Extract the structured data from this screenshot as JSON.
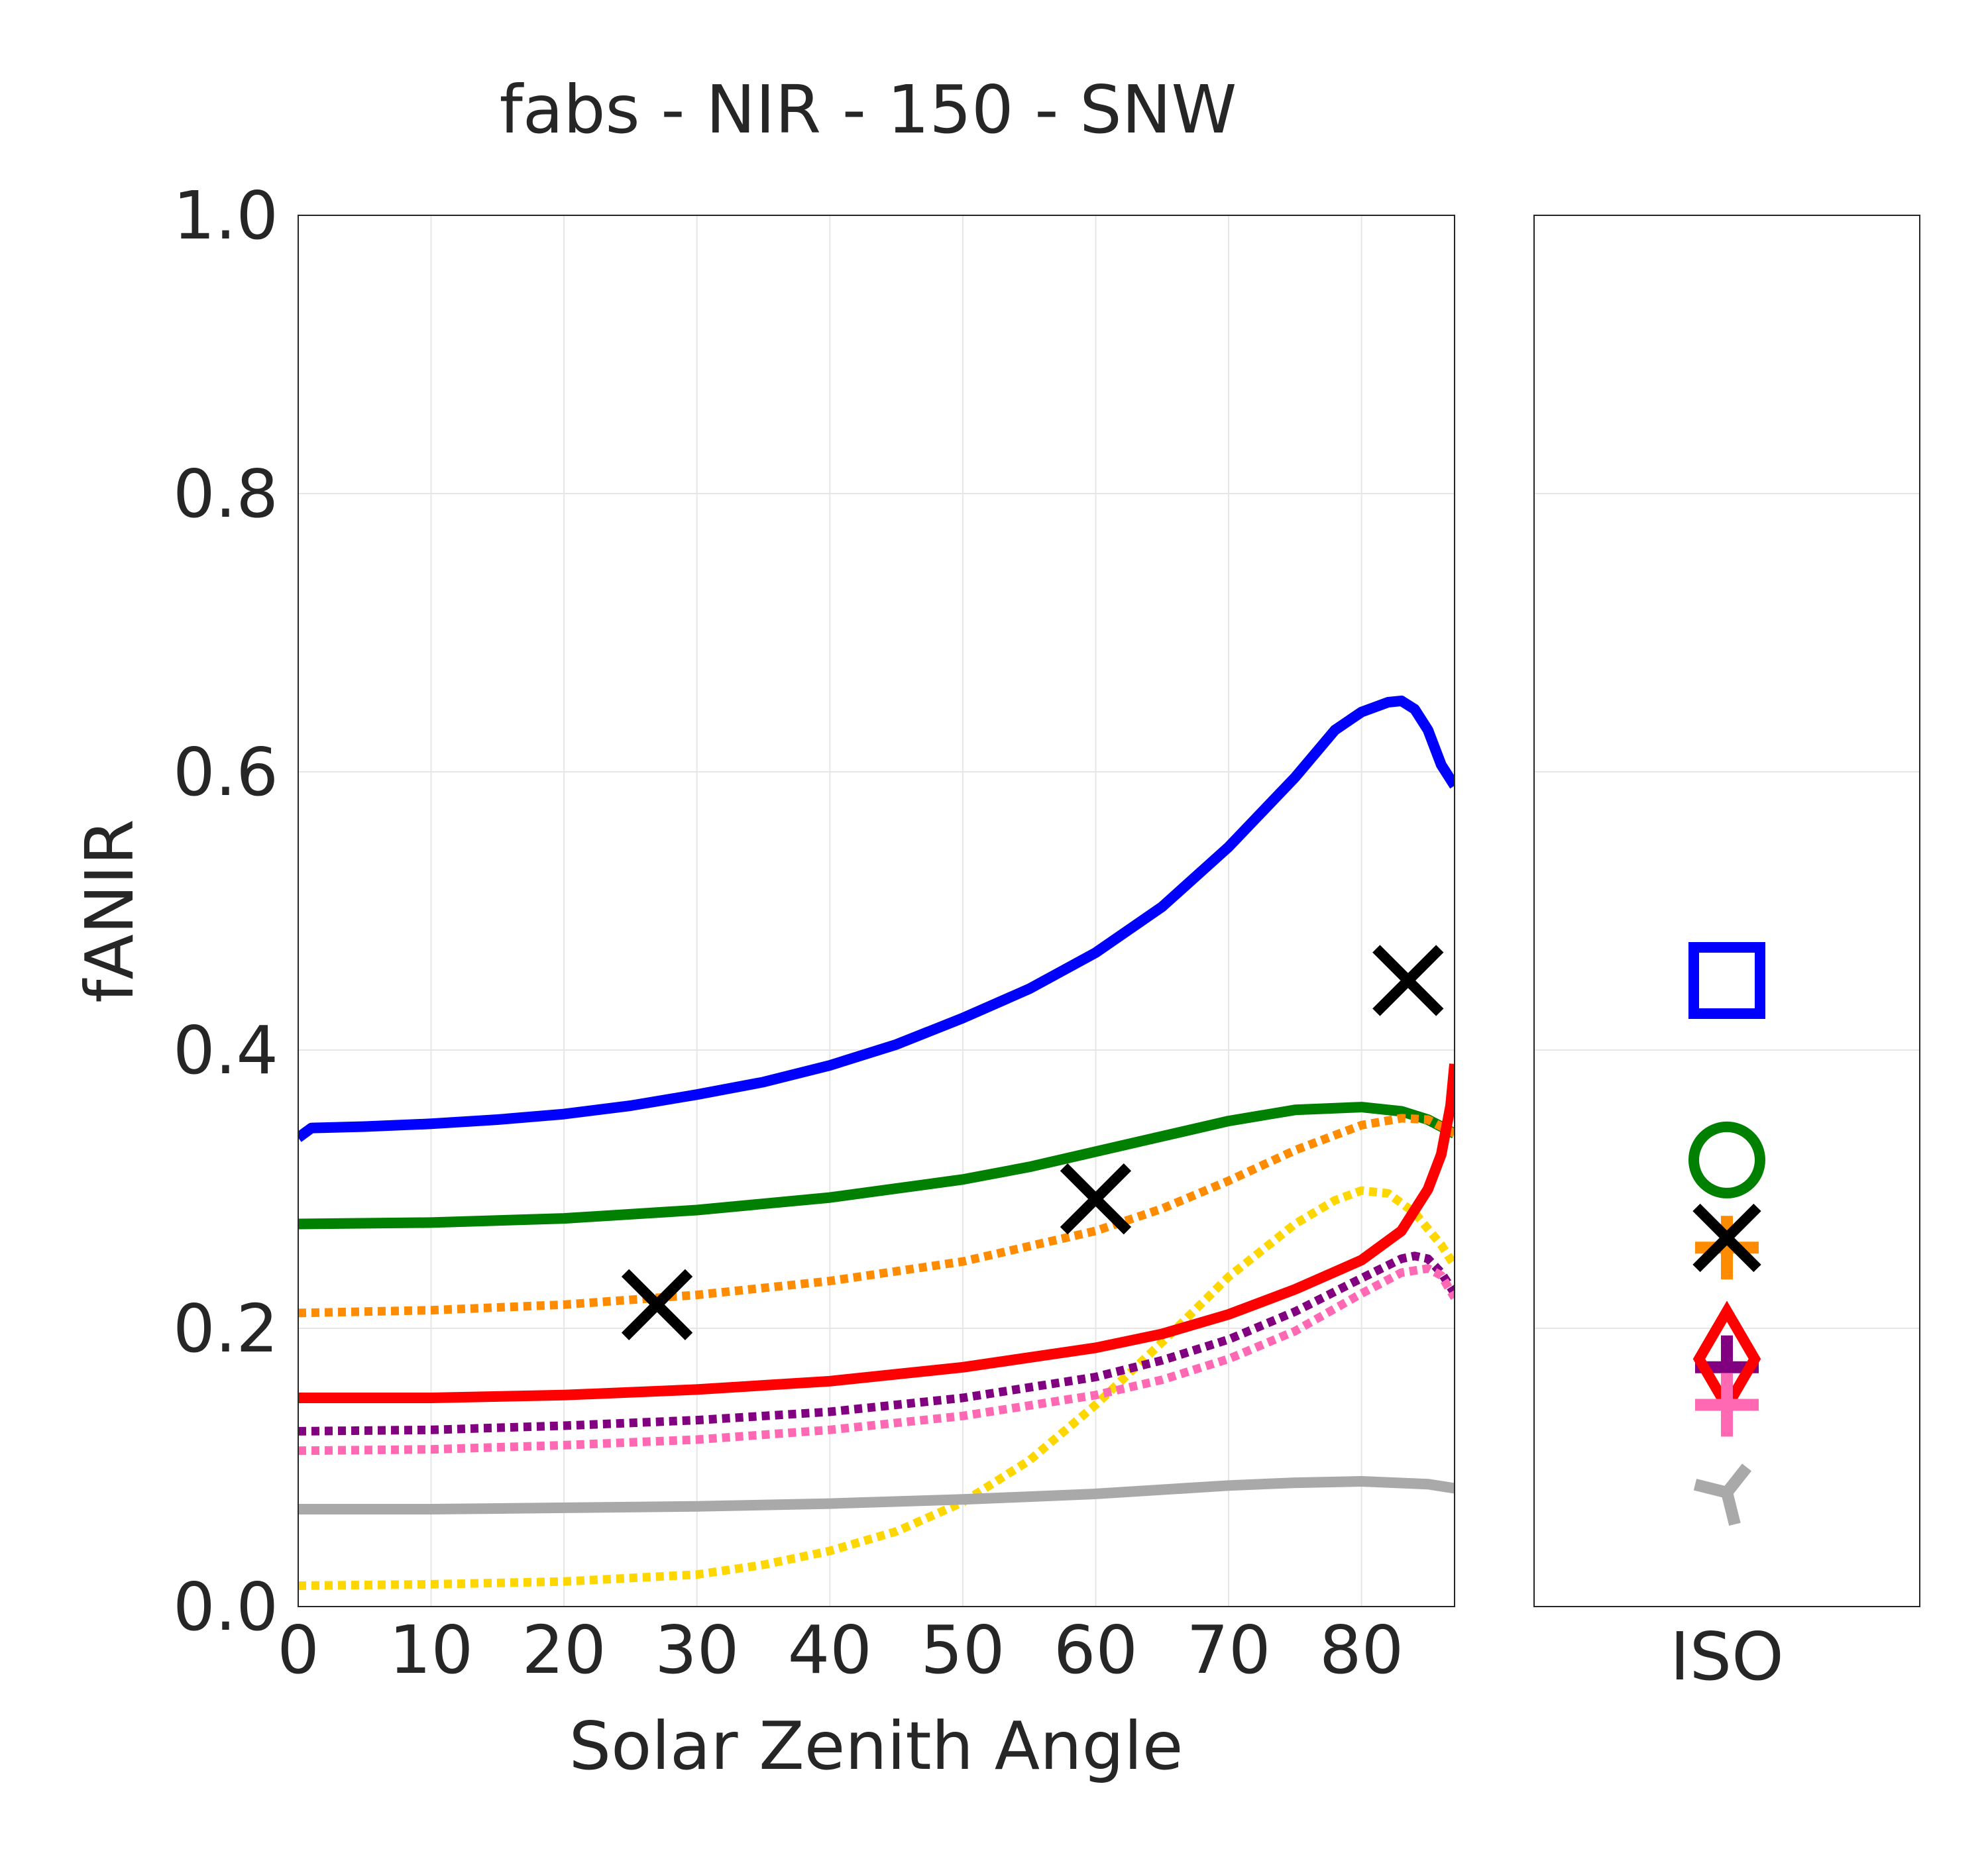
{
  "chart_data": [
    {
      "type": "line",
      "title": "fabs - NIR - 150 - SNW",
      "xlabel": "Solar Zenith Angle",
      "ylabel": "fANIR",
      "xlim": [
        0,
        87
      ],
      "ylim": [
        0,
        1
      ],
      "xticks": [
        "0",
        "10",
        "20",
        "30",
        "40",
        "50",
        "60",
        "70",
        "80"
      ],
      "yticks": [
        "0.0",
        "0.2",
        "0.4",
        "0.6",
        "0.8",
        "1.0"
      ],
      "grid": true,
      "series": [
        {
          "color": "#0000ff",
          "style": "solid",
          "x": [
            0,
            1,
            5,
            10,
            15,
            20,
            25,
            30,
            35,
            40,
            45,
            50,
            55,
            60,
            65,
            70,
            72,
            75,
            78,
            80,
            82,
            83,
            84,
            85,
            86,
            87
          ],
          "y": [
            0.337,
            0.344,
            0.345,
            0.347,
            0.35,
            0.354,
            0.36,
            0.368,
            0.377,
            0.389,
            0.404,
            0.423,
            0.444,
            0.47,
            0.503,
            0.546,
            0.566,
            0.596,
            0.63,
            0.643,
            0.65,
            0.651,
            0.645,
            0.63,
            0.605,
            0.59
          ]
        },
        {
          "color": "#008000",
          "style": "solid",
          "x": [
            0,
            10,
            20,
            30,
            40,
            50,
            55,
            60,
            65,
            70,
            75,
            80,
            83,
            85,
            87
          ],
          "y": [
            0.275,
            0.276,
            0.279,
            0.285,
            0.294,
            0.307,
            0.316,
            0.327,
            0.338,
            0.349,
            0.357,
            0.359,
            0.356,
            0.35,
            0.34
          ]
        },
        {
          "color": "#ff8c00",
          "style": "dotted",
          "x": [
            0,
            10,
            20,
            30,
            40,
            50,
            60,
            65,
            70,
            75,
            80,
            83,
            85,
            87
          ],
          "y": [
            0.211,
            0.213,
            0.217,
            0.224,
            0.234,
            0.248,
            0.27,
            0.286,
            0.306,
            0.328,
            0.346,
            0.351,
            0.35,
            0.34
          ]
        },
        {
          "color": "#ffd700",
          "style": "dotted",
          "x": [
            0,
            10,
            20,
            30,
            35,
            40,
            45,
            50,
            55,
            60,
            65,
            70,
            75,
            78,
            80,
            82,
            84,
            86,
            87
          ],
          "y": [
            0.015,
            0.016,
            0.018,
            0.023,
            0.03,
            0.04,
            0.054,
            0.075,
            0.105,
            0.145,
            0.19,
            0.237,
            0.275,
            0.292,
            0.299,
            0.297,
            0.283,
            0.26,
            0.245
          ]
        },
        {
          "color": "#ff0000",
          "style": "solid",
          "x": [
            0,
            10,
            20,
            30,
            40,
            50,
            60,
            65,
            70,
            75,
            80,
            83,
            85,
            86,
            86.7,
            87
          ],
          "y": [
            0.15,
            0.15,
            0.152,
            0.156,
            0.162,
            0.172,
            0.186,
            0.196,
            0.21,
            0.228,
            0.249,
            0.27,
            0.3,
            0.325,
            0.36,
            0.39
          ]
        },
        {
          "color": "#800080",
          "style": "dotted",
          "x": [
            0,
            10,
            20,
            30,
            40,
            50,
            60,
            65,
            70,
            75,
            80,
            83,
            84,
            85,
            86,
            87
          ],
          "y": [
            0.126,
            0.127,
            0.13,
            0.134,
            0.14,
            0.15,
            0.165,
            0.177,
            0.192,
            0.212,
            0.236,
            0.25,
            0.252,
            0.25,
            0.24,
            0.225
          ]
        },
        {
          "color": "#ff69b4",
          "style": "dotted",
          "x": [
            0,
            10,
            20,
            30,
            40,
            50,
            60,
            65,
            70,
            75,
            80,
            83,
            85,
            86,
            87
          ],
          "y": [
            0.112,
            0.113,
            0.116,
            0.12,
            0.127,
            0.137,
            0.152,
            0.163,
            0.178,
            0.198,
            0.225,
            0.24,
            0.243,
            0.238,
            0.222
          ]
        },
        {
          "color": "#a9a9a9",
          "style": "solid",
          "x": [
            0,
            10,
            20,
            30,
            40,
            50,
            60,
            70,
            75,
            80,
            85,
            87
          ],
          "y": [
            0.07,
            0.07,
            0.071,
            0.072,
            0.074,
            0.077,
            0.081,
            0.087,
            0.089,
            0.09,
            0.088,
            0.085
          ]
        },
        {
          "color": "#000000",
          "style": "marker-x",
          "x": [
            27,
            60,
            83.5
          ],
          "y": [
            0.217,
            0.293,
            0.45
          ]
        }
      ]
    },
    {
      "type": "scatter",
      "xlabel": "ISO",
      "ylim": [
        0,
        1
      ],
      "grid": true,
      "points": [
        {
          "marker": "square",
          "color": "#0000ff",
          "y": 0.45
        },
        {
          "marker": "circle",
          "color": "#008000",
          "y": 0.321
        },
        {
          "marker": "plus",
          "color": "#ff8c00",
          "y": 0.258
        },
        {
          "marker": "x",
          "color": "#000000",
          "y": 0.265
        },
        {
          "marker": "plus",
          "color": "#800080",
          "y": 0.172
        },
        {
          "marker": "diamond",
          "color": "#ff0000",
          "y": 0.178
        },
        {
          "marker": "plus",
          "color": "#ff69b4",
          "y": 0.145
        },
        {
          "marker": "tri_down",
          "color": "#a9a9a9",
          "y": 0.082
        }
      ]
    }
  ]
}
